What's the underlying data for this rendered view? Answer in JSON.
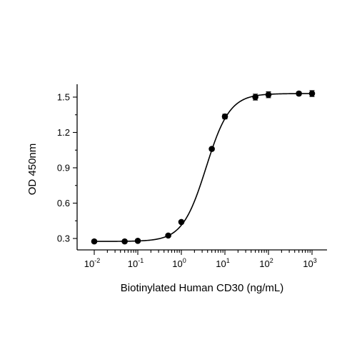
{
  "chart_data": {
    "type": "scatter",
    "title": "",
    "xlabel": "Biotinylated Human CD30 (ng/mL)",
    "ylabel": "OD 450nm",
    "x_scale": "log",
    "xlim": [
      0.01,
      1000
    ],
    "ylim": [
      0.2,
      1.6
    ],
    "x_ticks": [
      {
        "value": 0.01,
        "base": "10",
        "exp": "-2"
      },
      {
        "value": 0.1,
        "base": "10",
        "exp": "-1"
      },
      {
        "value": 1,
        "base": "10",
        "exp": "0"
      },
      {
        "value": 10,
        "base": "10",
        "exp": "1"
      },
      {
        "value": 100,
        "base": "10",
        "exp": "2"
      },
      {
        "value": 1000,
        "base": "10",
        "exp": "3"
      }
    ],
    "y_ticks": [
      {
        "value": 0.3,
        "label": "0.3"
      },
      {
        "value": 0.6,
        "label": "0.6"
      },
      {
        "value": 0.9,
        "label": "0.9"
      },
      {
        "value": 1.2,
        "label": "1.2"
      },
      {
        "value": 1.5,
        "label": "1.5"
      }
    ],
    "grid": false,
    "legend": "none",
    "series": [
      {
        "points": [
          {
            "x": 0.01,
            "y": 0.275,
            "err": 0.005
          },
          {
            "x": 0.05,
            "y": 0.275,
            "err": 0.005
          },
          {
            "x": 0.1,
            "y": 0.28,
            "err": 0.005
          },
          {
            "x": 0.5,
            "y": 0.325,
            "err": 0.006
          },
          {
            "x": 1,
            "y": 0.44,
            "err": 0.008
          },
          {
            "x": 5,
            "y": 1.06,
            "err": 0.01
          },
          {
            "x": 10,
            "y": 1.335,
            "err": 0.02
          },
          {
            "x": 50,
            "y": 1.5,
            "err": 0.025
          },
          {
            "x": 100,
            "y": 1.52,
            "err": 0.025
          },
          {
            "x": 500,
            "y": 1.53,
            "err": 0.015
          },
          {
            "x": 1000,
            "y": 1.53,
            "err": 0.025
          }
        ],
        "fit": {
          "model": "4PL",
          "bottom": 0.275,
          "top": 1.53,
          "ec50": 3.7,
          "hill": 1.6
        }
      }
    ],
    "colors": {
      "marks": "#000000",
      "background": "#ffffff"
    }
  }
}
